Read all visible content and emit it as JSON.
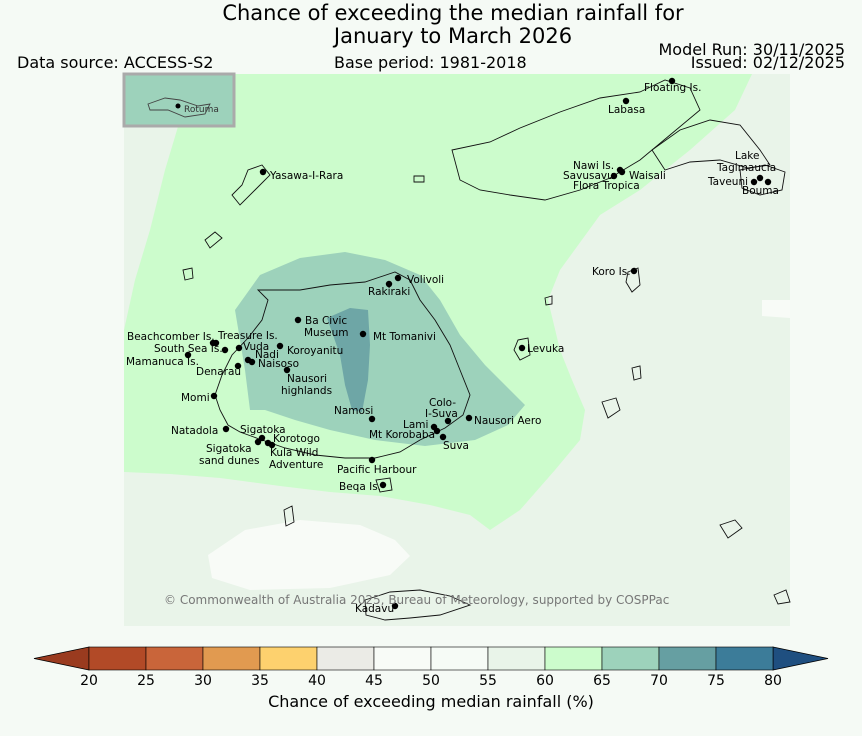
{
  "header": {
    "title_line1": "Chance of exceeding the median rainfall for",
    "title_line2": "January to March 2026",
    "data_source": "Data source: ACCESS-S2",
    "base_period": "Base period: 1981-2018",
    "model_run": "Model Run: 30/11/2025",
    "issued": "Issued: 02/12/2025"
  },
  "inset": {
    "label": "Rotuma"
  },
  "map": {
    "places": [
      {
        "name": "Floating Is.",
        "label": "Floating Is."
      },
      {
        "name": "Labasa",
        "label": "Labasa"
      },
      {
        "name": "Yasawa-I-Rara",
        "label": "Yasawa-I-Rara"
      },
      {
        "name": "Nawi Is.",
        "label": "Nawi Is."
      },
      {
        "name": "Savusavu",
        "label": "Savusavu"
      },
      {
        "name": "Waisali",
        "label": "Waisali"
      },
      {
        "name": "Flora Tropica",
        "label": "Flora Tropica"
      },
      {
        "name": "Lake Tagimaucia",
        "label": "Lake Tagimaucia"
      },
      {
        "name": "Taveuni",
        "label": "Taveuni"
      },
      {
        "name": "Bouma",
        "label": "Bouma"
      },
      {
        "name": "Koro Is.",
        "label": "Koro Is."
      },
      {
        "name": "Volivoli",
        "label": "Volivoli"
      },
      {
        "name": "Rakiraki",
        "label": "Rakiraki"
      },
      {
        "name": "Ba Civic Museum",
        "label": "Ba Civic Museum"
      },
      {
        "name": "Mt Tomanivi",
        "label": "Mt Tomanivi"
      },
      {
        "name": "Beachcomber Is.",
        "label": "Beachcomber Is."
      },
      {
        "name": "Treasure Is.",
        "label": "Treasure Is."
      },
      {
        "name": "South Sea Is.",
        "label": "South Sea Is."
      },
      {
        "name": "Vuda",
        "label": "Vuda"
      },
      {
        "name": "Koroyanitu",
        "label": "Koroyanitu"
      },
      {
        "name": "Mamanuca Is.",
        "label": "Mamanuca Is."
      },
      {
        "name": "Nadi",
        "label": "Nadi"
      },
      {
        "name": "Naisoso",
        "label": "Naisoso"
      },
      {
        "name": "Denarau",
        "label": "Denarau"
      },
      {
        "name": "Nausori highlands",
        "label": "Nausori highlands"
      },
      {
        "name": "Levuka",
        "label": "Levuka"
      },
      {
        "name": "Momi",
        "label": "Momi"
      },
      {
        "name": "Namosi",
        "label": "Namosi"
      },
      {
        "name": "Colo-I-Suva",
        "label": "Colo-I-Suva"
      },
      {
        "name": "Nausori Aero",
        "label": "Nausori Aero"
      },
      {
        "name": "Lami",
        "label": "Lami"
      },
      {
        "name": "Mt Korobaba",
        "label": "Mt Korobaba"
      },
      {
        "name": "Suva",
        "label": "Suva"
      },
      {
        "name": "Natadola",
        "label": "Natadola"
      },
      {
        "name": "Sigatoka",
        "label": "Sigatoka"
      },
      {
        "name": "Korotogo",
        "label": "Korotogo"
      },
      {
        "name": "Sigatoka sand dunes",
        "label": "Sigatoka sand dunes"
      },
      {
        "name": "Kula Wild Adventure",
        "label": "Kula Wild Adventure"
      },
      {
        "name": "Pacific Harbour",
        "label": "Pacific Harbour"
      },
      {
        "name": "Beqa Is.",
        "label": "Beqa Is."
      },
      {
        "name": "Kadavu",
        "label": "Kadavu"
      }
    ],
    "copyright": "© Commonwealth of Australia 2025, Bureau of Meteorology, supported by COSPPac"
  },
  "colorbar": {
    "title": "Chance of exceeding median rainfall (%)",
    "ticks": [
      "20",
      "25",
      "30",
      "35",
      "40",
      "45",
      "50",
      "55",
      "60",
      "65",
      "70",
      "75",
      "80"
    ],
    "colors": [
      "#b24a27",
      "#c9653a",
      "#e19a50",
      "#fdd16e",
      "#ebebe6",
      "#f8fbf7",
      "#f6fbf6",
      "#e9f4e9",
      "#ccfccc",
      "#9dd2bb",
      "#669fa2",
      "#3c7c99"
    ],
    "under_color": "#9a3b1f",
    "over_color": "#1f4f80"
  }
}
